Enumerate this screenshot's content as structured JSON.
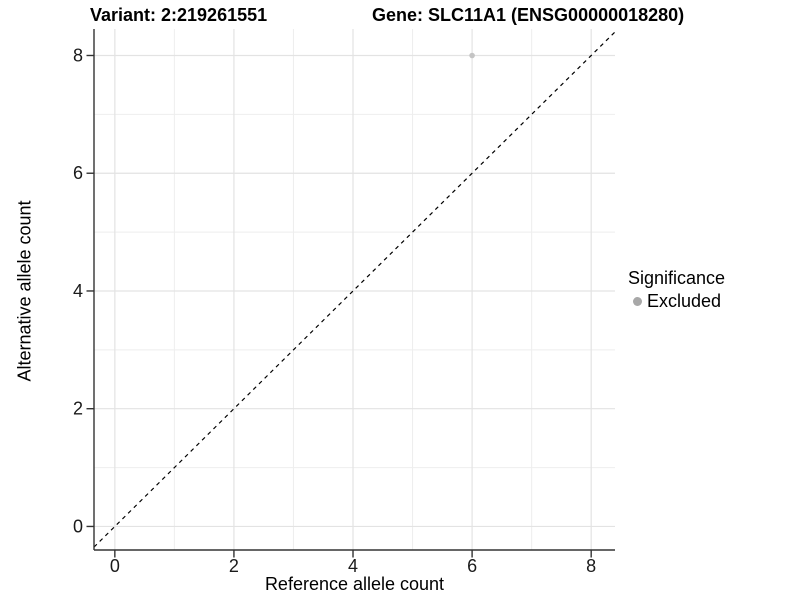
{
  "chart_data": {
    "type": "scatter",
    "titles": [
      "Variant: 2:219261551",
      "Gene: SLC11A1 (ENSG00000018280)"
    ],
    "xlabel": "Reference allele count",
    "ylabel": "Alternative allele count",
    "xlim": [
      -0.35,
      8.4
    ],
    "ylim": [
      -0.4,
      8.45
    ],
    "xticks": [
      0,
      2,
      4,
      6,
      8
    ],
    "yticks": [
      0,
      2,
      4,
      6,
      8
    ],
    "minor_xticks": [
      1,
      3,
      5,
      7
    ],
    "minor_yticks": [
      1,
      3,
      5,
      7
    ],
    "grid": "major+minor",
    "points": [
      {
        "x": 6,
        "y": 8,
        "series": "Excluded"
      }
    ],
    "identity_line": {
      "equation": "y = x",
      "style": "dashed"
    },
    "legend": {
      "title": "Significance",
      "position": "right",
      "entries": [
        {
          "label": "Excluded",
          "marker": "circle"
        }
      ]
    }
  },
  "colors": {
    "background": "#ffffff",
    "grid_major": "#e3e3e3",
    "grid_minor": "#eeeeee",
    "axis_line": "#333333",
    "tick_text": "#1a1a1a",
    "title_text": "#000000",
    "point_excluded": "#c4c4c4",
    "legend_marker": "#a8a8a8",
    "identity_line": "#000000"
  }
}
